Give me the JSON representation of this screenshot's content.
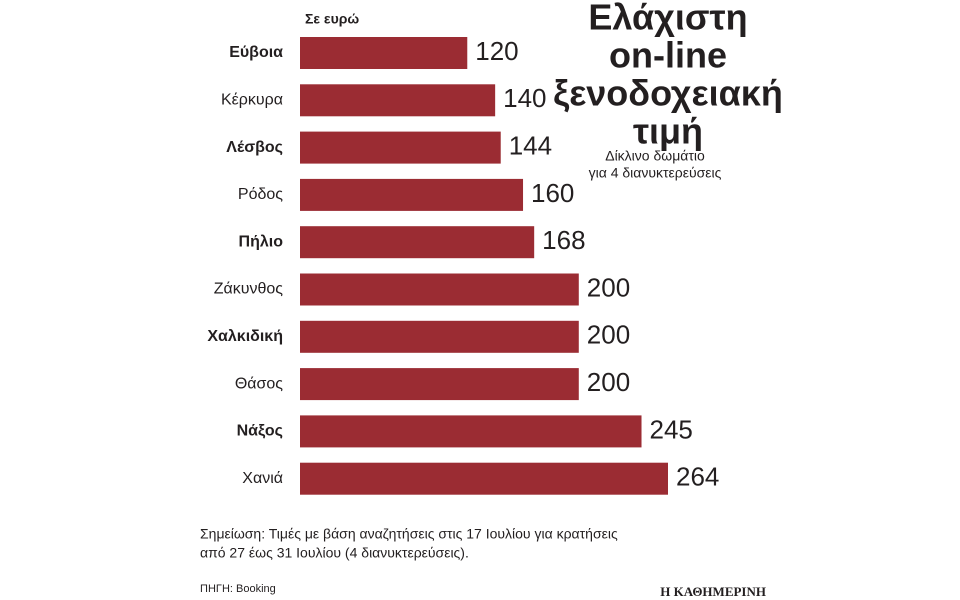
{
  "chart_data": {
    "type": "bar",
    "orientation": "horizontal",
    "title": [
      "Ελάχιστη",
      "on-line",
      "ξενοδοχειακή",
      "τιμή"
    ],
    "subtitle": [
      "Δίκλινο δωμάτιο",
      "για 4 διανυκτερεύσεις"
    ],
    "unit_label": "Σε ευρώ",
    "categories": [
      "Εύβοια",
      "Κέρκυρα",
      "Λέσβος",
      "Ρόδος",
      "Πήλιο",
      "Ζάκυνθος",
      "Χαλκιδική",
      "Θάσος",
      "Νάξος",
      "Χανιά"
    ],
    "values": [
      120,
      140,
      144,
      160,
      168,
      200,
      200,
      200,
      245,
      264
    ],
    "color": "#9b2c33",
    "note": [
      "Σημείωση: Τιμές με βάση αναζητήσεις στις 17 Ιουλίου για κρατήσεις",
      "από 27 έως 31 Ιουλίου (4 διανυκτερεύσεις)."
    ],
    "source": "ΠΗΓΗ: Booking",
    "brand": "Η ΚΑΘΗΜΕΡΙΝΗ"
  }
}
